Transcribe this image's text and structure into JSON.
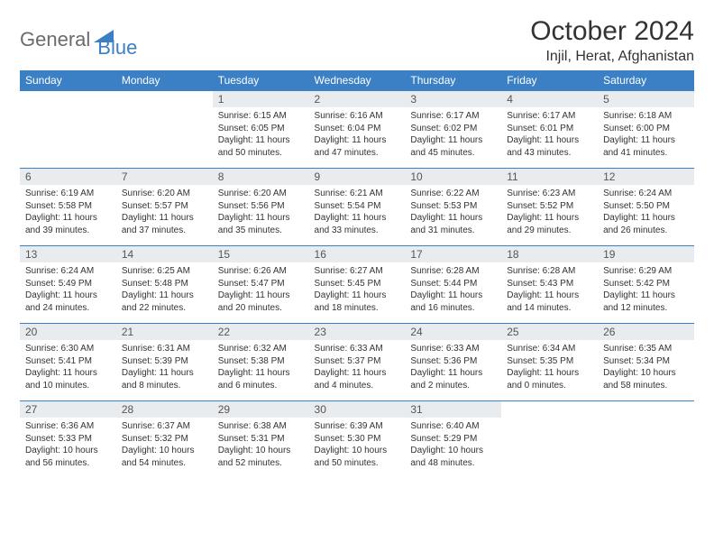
{
  "logo": {
    "part1": "General",
    "part2": "Blue"
  },
  "title": "October 2024",
  "location": "Injil, Herat, Afghanistan",
  "colors": {
    "header_bg": "#3b7fc4",
    "header_text": "#ffffff",
    "daynum_bg": "#e9ecef",
    "daynum_text": "#555555",
    "body_text": "#333333",
    "logo_gray": "#6b6b6b",
    "logo_blue": "#3b7fc4",
    "border": "#3b7fc4"
  },
  "day_headers": [
    "Sunday",
    "Monday",
    "Tuesday",
    "Wednesday",
    "Thursday",
    "Friday",
    "Saturday"
  ],
  "weeks": [
    [
      null,
      null,
      {
        "n": "1",
        "sr": "Sunrise: 6:15 AM",
        "ss": "Sunset: 6:05 PM",
        "d1": "Daylight: 11 hours",
        "d2": "and 50 minutes."
      },
      {
        "n": "2",
        "sr": "Sunrise: 6:16 AM",
        "ss": "Sunset: 6:04 PM",
        "d1": "Daylight: 11 hours",
        "d2": "and 47 minutes."
      },
      {
        "n": "3",
        "sr": "Sunrise: 6:17 AM",
        "ss": "Sunset: 6:02 PM",
        "d1": "Daylight: 11 hours",
        "d2": "and 45 minutes."
      },
      {
        "n": "4",
        "sr": "Sunrise: 6:17 AM",
        "ss": "Sunset: 6:01 PM",
        "d1": "Daylight: 11 hours",
        "d2": "and 43 minutes."
      },
      {
        "n": "5",
        "sr": "Sunrise: 6:18 AM",
        "ss": "Sunset: 6:00 PM",
        "d1": "Daylight: 11 hours",
        "d2": "and 41 minutes."
      }
    ],
    [
      {
        "n": "6",
        "sr": "Sunrise: 6:19 AM",
        "ss": "Sunset: 5:58 PM",
        "d1": "Daylight: 11 hours",
        "d2": "and 39 minutes."
      },
      {
        "n": "7",
        "sr": "Sunrise: 6:20 AM",
        "ss": "Sunset: 5:57 PM",
        "d1": "Daylight: 11 hours",
        "d2": "and 37 minutes."
      },
      {
        "n": "8",
        "sr": "Sunrise: 6:20 AM",
        "ss": "Sunset: 5:56 PM",
        "d1": "Daylight: 11 hours",
        "d2": "and 35 minutes."
      },
      {
        "n": "9",
        "sr": "Sunrise: 6:21 AM",
        "ss": "Sunset: 5:54 PM",
        "d1": "Daylight: 11 hours",
        "d2": "and 33 minutes."
      },
      {
        "n": "10",
        "sr": "Sunrise: 6:22 AM",
        "ss": "Sunset: 5:53 PM",
        "d1": "Daylight: 11 hours",
        "d2": "and 31 minutes."
      },
      {
        "n": "11",
        "sr": "Sunrise: 6:23 AM",
        "ss": "Sunset: 5:52 PM",
        "d1": "Daylight: 11 hours",
        "d2": "and 29 minutes."
      },
      {
        "n": "12",
        "sr": "Sunrise: 6:24 AM",
        "ss": "Sunset: 5:50 PM",
        "d1": "Daylight: 11 hours",
        "d2": "and 26 minutes."
      }
    ],
    [
      {
        "n": "13",
        "sr": "Sunrise: 6:24 AM",
        "ss": "Sunset: 5:49 PM",
        "d1": "Daylight: 11 hours",
        "d2": "and 24 minutes."
      },
      {
        "n": "14",
        "sr": "Sunrise: 6:25 AM",
        "ss": "Sunset: 5:48 PM",
        "d1": "Daylight: 11 hours",
        "d2": "and 22 minutes."
      },
      {
        "n": "15",
        "sr": "Sunrise: 6:26 AM",
        "ss": "Sunset: 5:47 PM",
        "d1": "Daylight: 11 hours",
        "d2": "and 20 minutes."
      },
      {
        "n": "16",
        "sr": "Sunrise: 6:27 AM",
        "ss": "Sunset: 5:45 PM",
        "d1": "Daylight: 11 hours",
        "d2": "and 18 minutes."
      },
      {
        "n": "17",
        "sr": "Sunrise: 6:28 AM",
        "ss": "Sunset: 5:44 PM",
        "d1": "Daylight: 11 hours",
        "d2": "and 16 minutes."
      },
      {
        "n": "18",
        "sr": "Sunrise: 6:28 AM",
        "ss": "Sunset: 5:43 PM",
        "d1": "Daylight: 11 hours",
        "d2": "and 14 minutes."
      },
      {
        "n": "19",
        "sr": "Sunrise: 6:29 AM",
        "ss": "Sunset: 5:42 PM",
        "d1": "Daylight: 11 hours",
        "d2": "and 12 minutes."
      }
    ],
    [
      {
        "n": "20",
        "sr": "Sunrise: 6:30 AM",
        "ss": "Sunset: 5:41 PM",
        "d1": "Daylight: 11 hours",
        "d2": "and 10 minutes."
      },
      {
        "n": "21",
        "sr": "Sunrise: 6:31 AM",
        "ss": "Sunset: 5:39 PM",
        "d1": "Daylight: 11 hours",
        "d2": "and 8 minutes."
      },
      {
        "n": "22",
        "sr": "Sunrise: 6:32 AM",
        "ss": "Sunset: 5:38 PM",
        "d1": "Daylight: 11 hours",
        "d2": "and 6 minutes."
      },
      {
        "n": "23",
        "sr": "Sunrise: 6:33 AM",
        "ss": "Sunset: 5:37 PM",
        "d1": "Daylight: 11 hours",
        "d2": "and 4 minutes."
      },
      {
        "n": "24",
        "sr": "Sunrise: 6:33 AM",
        "ss": "Sunset: 5:36 PM",
        "d1": "Daylight: 11 hours",
        "d2": "and 2 minutes."
      },
      {
        "n": "25",
        "sr": "Sunrise: 6:34 AM",
        "ss": "Sunset: 5:35 PM",
        "d1": "Daylight: 11 hours",
        "d2": "and 0 minutes."
      },
      {
        "n": "26",
        "sr": "Sunrise: 6:35 AM",
        "ss": "Sunset: 5:34 PM",
        "d1": "Daylight: 10 hours",
        "d2": "and 58 minutes."
      }
    ],
    [
      {
        "n": "27",
        "sr": "Sunrise: 6:36 AM",
        "ss": "Sunset: 5:33 PM",
        "d1": "Daylight: 10 hours",
        "d2": "and 56 minutes."
      },
      {
        "n": "28",
        "sr": "Sunrise: 6:37 AM",
        "ss": "Sunset: 5:32 PM",
        "d1": "Daylight: 10 hours",
        "d2": "and 54 minutes."
      },
      {
        "n": "29",
        "sr": "Sunrise: 6:38 AM",
        "ss": "Sunset: 5:31 PM",
        "d1": "Daylight: 10 hours",
        "d2": "and 52 minutes."
      },
      {
        "n": "30",
        "sr": "Sunrise: 6:39 AM",
        "ss": "Sunset: 5:30 PM",
        "d1": "Daylight: 10 hours",
        "d2": "and 50 minutes."
      },
      {
        "n": "31",
        "sr": "Sunrise: 6:40 AM",
        "ss": "Sunset: 5:29 PM",
        "d1": "Daylight: 10 hours",
        "d2": "and 48 minutes."
      },
      null,
      null
    ]
  ]
}
